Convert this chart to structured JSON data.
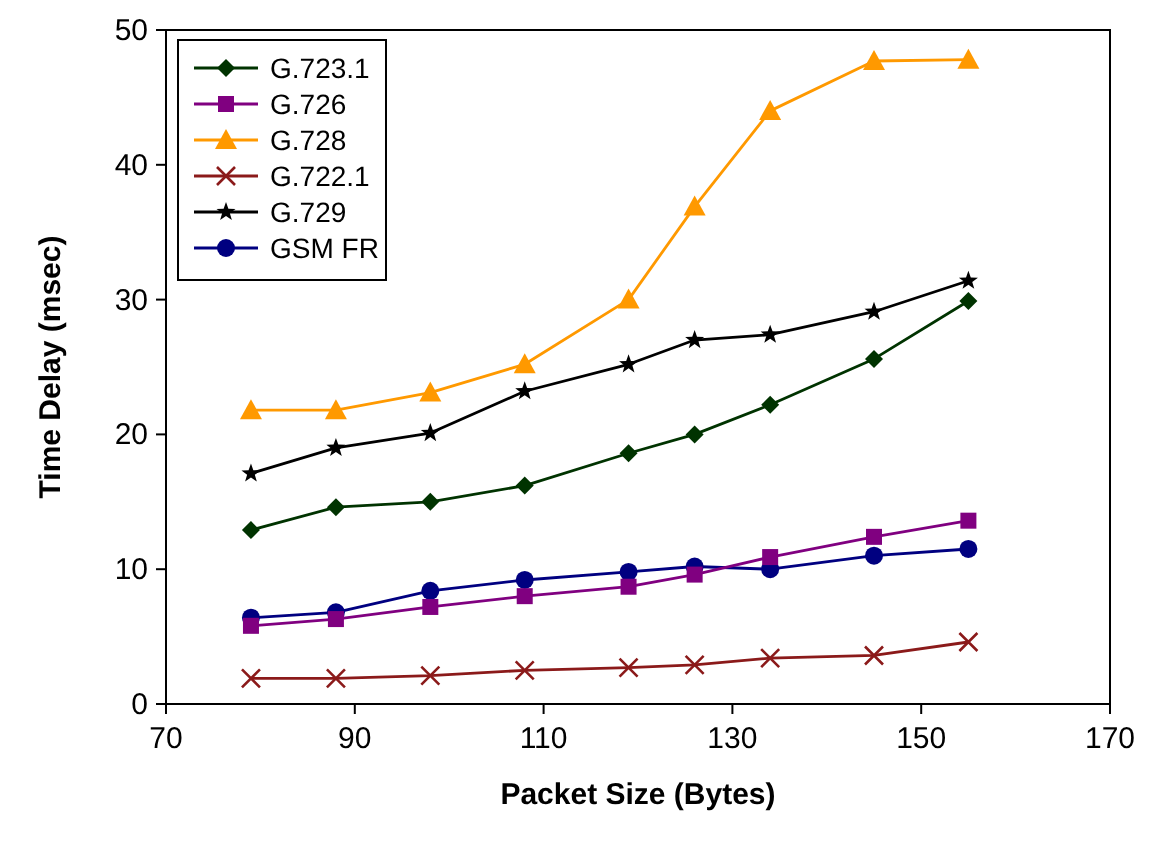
{
  "chart_data": {
    "type": "line",
    "xlabel": "Packet Size (Bytes)",
    "ylabel": "Time Delay (msec)",
    "x": [
      79,
      88,
      98,
      108,
      119,
      126,
      134,
      145,
      155
    ],
    "xlim": [
      70,
      170
    ],
    "xticks": [
      70,
      90,
      110,
      130,
      150,
      170
    ],
    "ylim": [
      0,
      50
    ],
    "yticks": [
      0,
      10,
      20,
      30,
      40,
      50
    ],
    "grid": false,
    "legend": "top left",
    "line_style": "solid",
    "series": [
      {
        "name": "G.723.1",
        "color": "#003300",
        "marker": "diamond",
        "values": [
          12.9,
          14.6,
          15.0,
          16.2,
          18.6,
          20.0,
          22.2,
          25.6,
          29.9
        ]
      },
      {
        "name": "G.726",
        "color": "#800080",
        "marker": "square",
        "values": [
          5.8,
          6.3,
          7.2,
          8.0,
          8.7,
          9.6,
          10.9,
          12.4,
          13.6
        ]
      },
      {
        "name": "G.728",
        "color": "#ff9900",
        "marker": "triangle",
        "values": [
          21.8,
          21.8,
          23.1,
          25.2,
          30.0,
          36.9,
          44.0,
          47.7,
          47.8
        ]
      },
      {
        "name": "G.722.1",
        "color": "#8b1a1a",
        "marker": "cross",
        "values": [
          1.9,
          1.9,
          2.1,
          2.5,
          2.7,
          2.9,
          3.4,
          3.6,
          4.6
        ]
      },
      {
        "name": "G.729",
        "color": "#000000",
        "marker": "star",
        "values": [
          17.1,
          19.0,
          20.1,
          23.2,
          25.2,
          27.0,
          27.4,
          29.1,
          31.4
        ]
      },
      {
        "name": "GSM FR",
        "color": "#000080",
        "marker": "circle",
        "values": [
          6.4,
          6.8,
          8.4,
          9.2,
          9.8,
          10.2,
          10.0,
          11.0,
          11.5
        ]
      }
    ]
  }
}
